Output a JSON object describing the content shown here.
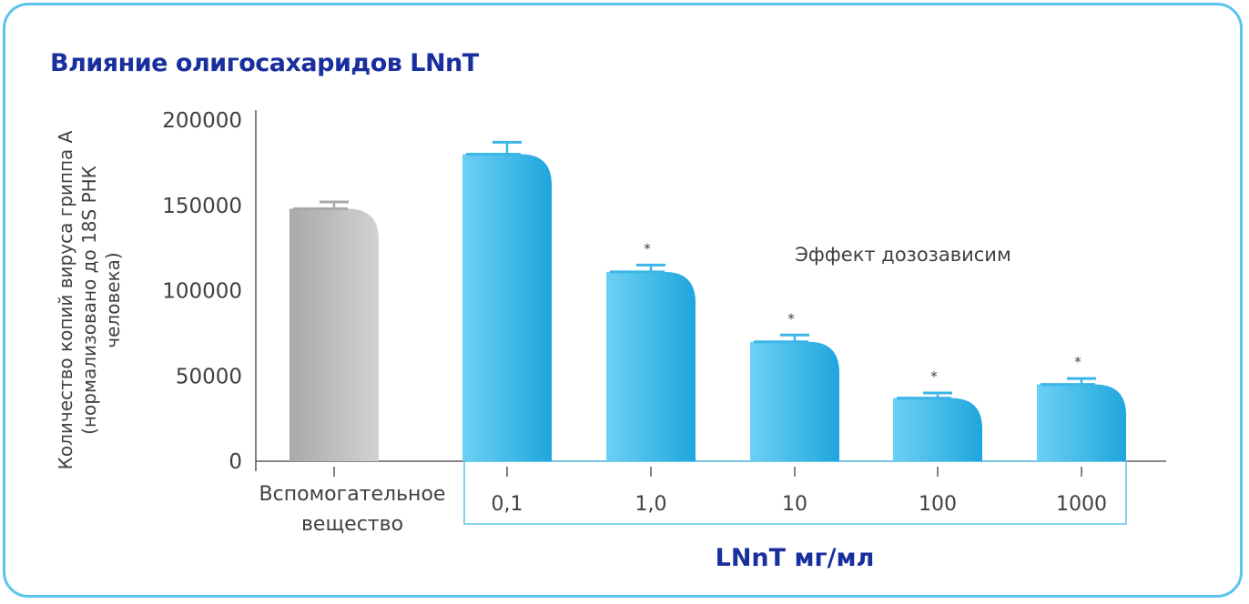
{
  "title": "Влияние олигосахаридов LNnT",
  "chart_data": {
    "type": "bar",
    "categories": [
      "Вспомогательное вещество",
      "0,1",
      "1,0",
      "10",
      "100",
      "1000"
    ],
    "category_lines": [
      [
        "Вспомогательное",
        "вещество"
      ],
      [
        "0,1"
      ],
      [
        "1,0"
      ],
      [
        "10"
      ],
      [
        "100"
      ],
      [
        "1000"
      ]
    ],
    "values": [
      148000,
      180000,
      111000,
      70000,
      37000,
      45000
    ],
    "errors": [
      4000,
      7000,
      4000,
      4000,
      3000,
      3500
    ],
    "significance": [
      "",
      "",
      "*",
      "*",
      "*",
      "*"
    ],
    "colors": [
      "gray",
      "blue",
      "blue",
      "blue",
      "blue",
      "blue"
    ],
    "ylim": [
      0,
      200000
    ],
    "yticks": [
      "0",
      "50000",
      "100000",
      "150000",
      "200000"
    ],
    "ytick_values": [
      0,
      50000,
      100000,
      150000,
      200000
    ],
    "ylabel_lines": [
      "Количество копий вируса гриппа А",
      "(нормализовано до 18S РНК",
      "человека)"
    ],
    "xlabel": "LNnT мг/мл",
    "annotation": "Эффект дозозависим",
    "grid": false
  },
  "colors": {
    "accent": "#1a2f9e",
    "border": "#5bc4ec",
    "bar_blue_light": "#6dd0f5",
    "bar_blue_dark": "#1ea6de",
    "bar_gray_light": "#d2d2d2",
    "bar_gray_dark": "#a9a9a9"
  }
}
